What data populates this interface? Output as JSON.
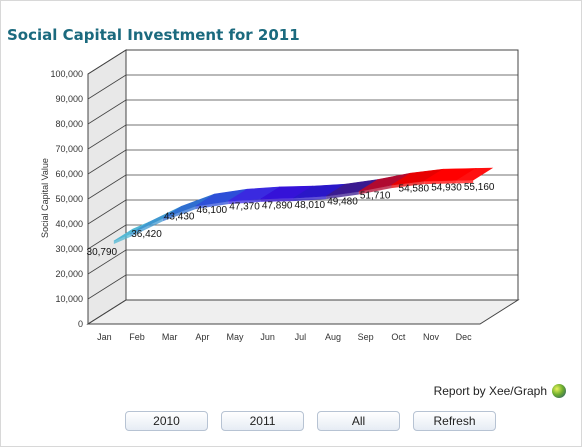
{
  "chart_data": {
    "type": "area",
    "title": "Social Capital Investment for 2011",
    "ylabel": "Social Capital Value",
    "xlabel": "",
    "categories": [
      "Jan",
      "Feb",
      "Mar",
      "Apr",
      "May",
      "Jun",
      "Jul",
      "Aug",
      "Sep",
      "Oct",
      "Nov",
      "Dec"
    ],
    "values": [
      30790,
      36420,
      43430,
      46100,
      47370,
      47890,
      48010,
      49480,
      51710,
      54580,
      54930,
      55160
    ],
    "value_labels": [
      "30,790",
      "36,420",
      "43,430",
      "46,100",
      "47,370",
      "47,890",
      "48,010",
      "49,480",
      "51,710",
      "54,580",
      "54,930",
      "55,160"
    ],
    "ylim": [
      0,
      100000
    ],
    "yticks": [
      "0",
      "10,000",
      "20,000",
      "30,000",
      "40,000",
      "50,000",
      "60,000",
      "70,000",
      "80,000",
      "90,000",
      "100,000"
    ],
    "yticks_values": [
      0,
      10000,
      20000,
      30000,
      40000,
      50000,
      60000,
      70000,
      80000,
      90000,
      100000
    ],
    "grid": true,
    "style": "3d-ribbon",
    "colors": [
      "#52b8d4",
      "#3f98d0",
      "#2f6fd0",
      "#2d4fd8",
      "#3a2ae0",
      "#3512d8",
      "#2a17c8",
      "#3a1a90",
      "#b00a30",
      "#e80000",
      "#ff0000",
      "#ff1010"
    ]
  },
  "credit": {
    "text": "Report by Xee/Graph",
    "logo_icon": "xeegraph-logo-icon"
  },
  "buttons": {
    "y2010": "2010",
    "y2011": "2011",
    "all": "All",
    "refresh": "Refresh"
  }
}
